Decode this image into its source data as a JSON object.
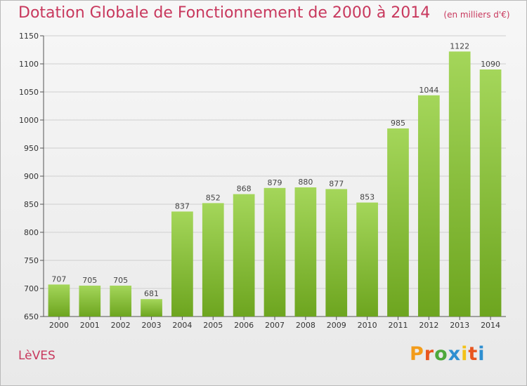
{
  "header": {
    "title": "Dotation Globale de Fonctionnement de 2000 à 2014",
    "subtitle": "(en milliers d'€)"
  },
  "footer": {
    "commune": "LèVES",
    "brand": "Proxiti"
  },
  "colors": {
    "title": "#c8385d",
    "bar_light": "#a4d65a",
    "bar_dark": "#6da51f",
    "grid": "#cfcfcf",
    "brand_letters": [
      "#f39c1a",
      "#e8561f",
      "#4ea83c",
      "#2f8fd1",
      "#f3c21a",
      "#e8561f",
      "#2f8fd1"
    ]
  },
  "chart_data": {
    "type": "bar",
    "title": "Dotation Globale de Fonctionnement de 2000 à 2014",
    "subtitle": "(en milliers d'€)",
    "xlabel": "",
    "ylabel": "",
    "ylim": [
      650,
      1150
    ],
    "yticks": [
      650,
      700,
      750,
      800,
      850,
      900,
      950,
      1000,
      1050,
      1100,
      1150
    ],
    "grid": true,
    "categories": [
      "2000",
      "2001",
      "2002",
      "2003",
      "2004",
      "2005",
      "2006",
      "2007",
      "2008",
      "2009",
      "2010",
      "2011",
      "2012",
      "2013",
      "2014"
    ],
    "values": [
      707,
      705,
      705,
      681,
      837,
      852,
      868,
      879,
      880,
      877,
      853,
      985,
      1044,
      1122,
      1090
    ],
    "data_labels": [
      "707",
      "705",
      "705",
      "681",
      "837",
      "852",
      "868",
      "879",
      "880",
      "877",
      "853",
      "985",
      "1044",
      "1122",
      "1090"
    ]
  }
}
